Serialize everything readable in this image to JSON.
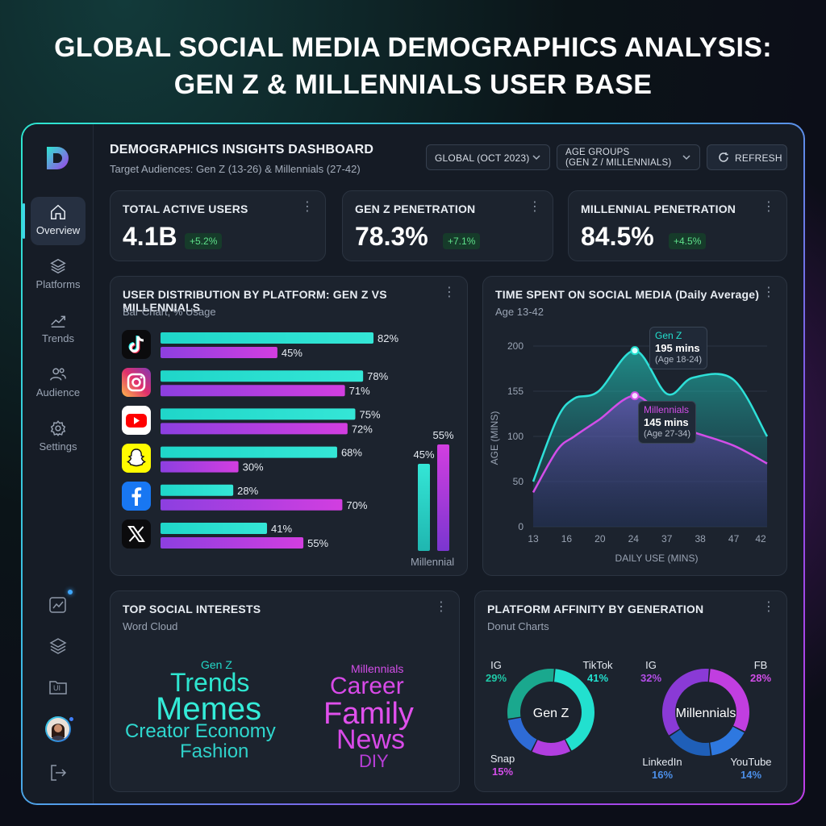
{
  "page_title_line1": "GLOBAL SOCIAL MEDIA DEMOGRAPHICS ANALYSIS:",
  "page_title_line2": "GEN Z & MILLENNIALS USER BASE",
  "sidebar": {
    "items": [
      {
        "label": "Overview",
        "icon": "home-icon",
        "active": true
      },
      {
        "label": "Platforms",
        "icon": "layers-icon"
      },
      {
        "label": "Trends",
        "icon": "trend-icon"
      },
      {
        "label": "Audience",
        "icon": "users-icon"
      },
      {
        "label": "Settings",
        "icon": "gear-icon"
      }
    ],
    "ui_badge": "UI"
  },
  "header": {
    "title": "DEMOGRAPHICS INSIGHTS DASHBOARD",
    "subtitle": "Target Audiences: Gen Z (13-26) & Millennials (27-42)",
    "region_select": "GLOBAL (OCT 2023)",
    "age_select_line1": "AGE GROUPS",
    "age_select_line2": "(GEN Z / MILLENNIALS)",
    "refresh_label": "REFRESH"
  },
  "kpis": [
    {
      "label": "TOTAL ACTIVE USERS",
      "value": "4.1B",
      "change": "+5.2%"
    },
    {
      "label": "GEN Z PENETRATION",
      "value": "78.3%",
      "change": "+7.1%"
    },
    {
      "label": "MILLENNIAL PENETRATION",
      "value": "84.5%",
      "change": "+4.5%"
    }
  ],
  "colors": {
    "genz": "#22e0cf",
    "millennial": "#c13ee0",
    "accent": "#3fd6e8",
    "positive": "#5ee08a"
  },
  "chart_data": [
    {
      "type": "bar",
      "title": "USER DISTRIBUTION BY PLATFORM: GEN Z VS MILLENNIALS",
      "subtitle": "Bar Chart, % Usage",
      "categories": [
        "TikTok",
        "Instagram",
        "YouTube",
        "Snapchat",
        "Facebook",
        "X"
      ],
      "category_icons": [
        "tiktok-icon",
        "instagram-icon",
        "youtube-icon",
        "snapchat-icon",
        "facebook-icon",
        "x-icon"
      ],
      "series": [
        {
          "values": [
            82,
            78,
            75,
            68,
            28,
            41
          ]
        },
        {
          "values": [
            45,
            71,
            72,
            30,
            70,
            55
          ]
        }
      ],
      "value_labels_genz": [
        "82%",
        "78%",
        "75%",
        "68%",
        "28%",
        "41%"
      ],
      "value_labels_millennial": [
        "45%",
        "71%",
        "72%",
        "30%",
        "70%",
        "55%"
      ],
      "mini_bars": [
        {
          "label": "45%",
          "value": 45
        },
        {
          "label": "55%",
          "value": 55
        }
      ],
      "mini_caption": "Millennial"
    },
    {
      "type": "area",
      "title": "TIME SPENT ON SOCIAL MEDIA (Daily Average)",
      "subtitle": "Age 13-42",
      "xlabel": "DAILY USE (MINS)",
      "ylabel": "AGE (MINS)",
      "x_ticks": [
        "13",
        "16",
        "20",
        "24",
        "37",
        "38",
        "47",
        "42"
      ],
      "y_ticks": [
        "0",
        "50",
        "100",
        "155",
        "200"
      ],
      "ylim": [
        0,
        215
      ],
      "series": [
        {
          "name": "Gen Z",
          "values": [
            50,
            120,
            142,
            150,
            195,
            147,
            165,
            163,
            100
          ]
        },
        {
          "name": "Millennials",
          "values": [
            38,
            85,
            100,
            118,
            145,
            117,
            105,
            90,
            70
          ]
        }
      ],
      "annotations": [
        {
          "series": "Gen Z",
          "value": "195 mins",
          "note": "(Age 18-24)"
        },
        {
          "series": "Millennials",
          "value": "145 mins",
          "note": "(Age 27-34)"
        }
      ]
    },
    {
      "type": "pie",
      "title": "PLATFORM AFFINITY BY GENERATION",
      "subtitle": "Donut Charts",
      "donuts": [
        {
          "center": "Gen Z",
          "slices": [
            {
              "label": "TikTok",
              "value": 41,
              "pct": "41%",
              "color": "#22e0cf"
            },
            {
              "label": "Snap",
              "value": 15,
              "pct": "15%",
              "color": "#b13ee0"
            },
            {
              "label": "",
              "value": 15,
              "pct": "",
              "color": "#2e6bd6"
            },
            {
              "label": "IG",
              "value": 29,
              "pct": "29%",
              "color": "#1aa88e"
            }
          ]
        },
        {
          "center": "Millennials",
          "slices": [
            {
              "label": "FB",
              "value": 28,
              "pct": "28%",
              "color": "#c13ee0"
            },
            {
              "label": "YouTube",
              "value": 14,
              "pct": "14%",
              "color": "#2e78e0"
            },
            {
              "label": "LinkedIn",
              "value": 16,
              "pct": "16%",
              "color": "#1f5fb8"
            },
            {
              "label": "IG",
              "value": 32,
              "pct": "32%",
              "color": "#8a3ad6"
            }
          ]
        }
      ]
    }
  ],
  "word_cloud": {
    "title": "TOP SOCIAL INTERESTS",
    "subtitle": "Word Cloud",
    "genz": {
      "heading": "Gen Z",
      "words": [
        "Trends",
        "Memes",
        "Creator Economy",
        "Fashion"
      ]
    },
    "millennials": {
      "heading": "Millennials",
      "words": [
        "Career",
        "Family",
        "News",
        "DIY"
      ]
    }
  }
}
